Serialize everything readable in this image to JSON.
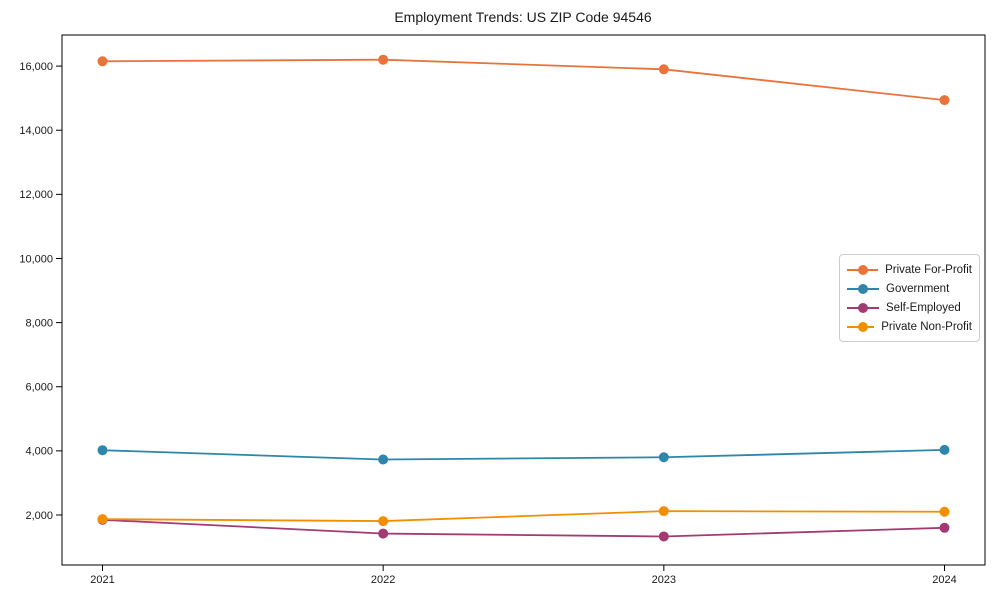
{
  "chart_data": {
    "type": "line",
    "title": "Employment Trends: US ZIP Code 94546",
    "x_categories": [
      "2021",
      "2022",
      "2023",
      "2024"
    ],
    "series": [
      {
        "name": "Private For-Profit",
        "color": "#E8743B",
        "values": [
          16150,
          16200,
          15900,
          14940
        ]
      },
      {
        "name": "Government",
        "color": "#2E86AB",
        "values": [
          4020,
          3730,
          3800,
          4030
        ]
      },
      {
        "name": "Self-Employed",
        "color": "#A23B72",
        "values": [
          1850,
          1420,
          1330,
          1600
        ]
      },
      {
        "name": "Private Non-Profit",
        "color": "#F18F01",
        "values": [
          1870,
          1810,
          2120,
          2100
        ]
      }
    ],
    "yticks": [
      2000,
      4000,
      6000,
      8000,
      10000,
      12000,
      14000,
      16000
    ],
    "ytick_labels": [
      "2,000",
      "4,000",
      "6,000",
      "8,000",
      "10,000",
      "12,000",
      "14,000",
      "16,000"
    ],
    "ylim": [
      440,
      16970
    ],
    "xlabel": "",
    "ylabel": "",
    "grid": false,
    "marker": "circle",
    "legend_position": "center right",
    "axis_color": "#000000",
    "text_color": "#1a1a1a",
    "legend_border_color": "#cccccc"
  }
}
